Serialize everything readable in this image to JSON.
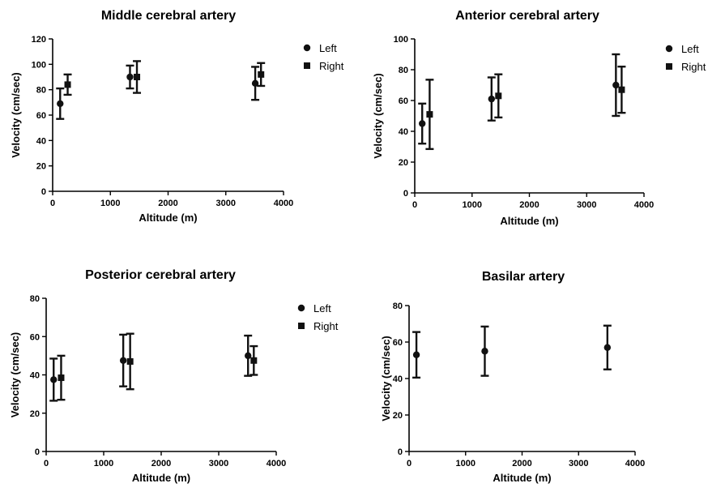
{
  "chart_data": [
    {
      "type": "scatter",
      "title": "Middle cerebral artery",
      "xlabel": "Altitude (m)",
      "ylabel": "Velocity (cm/sec)",
      "xlim": [
        0,
        4000
      ],
      "ylim": [
        0,
        120
      ],
      "xticks": [
        0,
        1000,
        2000,
        3000,
        4000
      ],
      "yticks": [
        0,
        20,
        40,
        60,
        80,
        100,
        120
      ],
      "grid": false,
      "legend": "right",
      "series": [
        {
          "name": "Left",
          "marker": "circle",
          "points": [
            {
              "x": 130,
              "y": 69,
              "err": 12
            },
            {
              "x": 1340,
              "y": 90,
              "err": 9
            },
            {
              "x": 3510,
              "y": 85,
              "err": 13
            }
          ]
        },
        {
          "name": "Right",
          "marker": "square",
          "points": [
            {
              "x": 260,
              "y": 84,
              "err": 8
            },
            {
              "x": 1460,
              "y": 90,
              "err": 12.5
            },
            {
              "x": 3610,
              "y": 92,
              "err": 9
            }
          ]
        }
      ]
    },
    {
      "type": "scatter",
      "title": "Anterior cerebral artery",
      "xlabel": "Altitude (m)",
      "ylabel": "Velocity (cm/sec)",
      "xlim": [
        0,
        4000
      ],
      "ylim": [
        0,
        100
      ],
      "xticks": [
        0,
        1000,
        2000,
        3000,
        4000
      ],
      "yticks": [
        0,
        20,
        40,
        60,
        80,
        100
      ],
      "grid": false,
      "legend": "right",
      "series": [
        {
          "name": "Left",
          "marker": "circle",
          "points": [
            {
              "x": 130,
              "y": 45,
              "err": 13
            },
            {
              "x": 1340,
              "y": 61,
              "err": 14
            },
            {
              "x": 3510,
              "y": 70,
              "err": 20
            }
          ]
        },
        {
          "name": "Right",
          "marker": "square",
          "points": [
            {
              "x": 260,
              "y": 51,
              "err": 22.5
            },
            {
              "x": 1460,
              "y": 63,
              "err": 14
            },
            {
              "x": 3610,
              "y": 67,
              "err": 15
            }
          ]
        }
      ]
    },
    {
      "type": "scatter",
      "title": "Posterior cerebral artery",
      "xlabel": "Altitude (m)",
      "ylabel": "Velocity (cm/sec)",
      "xlim": [
        0,
        4000
      ],
      "ylim": [
        0,
        80
      ],
      "xticks": [
        0,
        1000,
        2000,
        3000,
        4000
      ],
      "yticks": [
        0,
        20,
        40,
        60,
        80
      ],
      "grid": false,
      "legend": "right",
      "series": [
        {
          "name": "Left",
          "marker": "circle",
          "points": [
            {
              "x": 130,
              "y": 37.5,
              "err": 11
            },
            {
              "x": 1340,
              "y": 47.5,
              "err": 13.5
            },
            {
              "x": 3510,
              "y": 50,
              "err": 10.5
            }
          ]
        },
        {
          "name": "Right",
          "marker": "square",
          "points": [
            {
              "x": 260,
              "y": 38.5,
              "err": 11.5
            },
            {
              "x": 1460,
              "y": 47,
              "err": 14.5
            },
            {
              "x": 3610,
              "y": 47.5,
              "err": 7.5
            }
          ]
        }
      ]
    },
    {
      "type": "scatter",
      "title": "Basilar artery",
      "xlabel": "Altitude (m)",
      "ylabel": "Velocity (cm/sec)",
      "xlim": [
        0,
        4000
      ],
      "ylim": [
        0,
        80
      ],
      "xticks": [
        0,
        1000,
        2000,
        3000,
        4000
      ],
      "yticks": [
        0,
        20,
        40,
        60,
        80
      ],
      "grid": false,
      "legend": "none",
      "series": [
        {
          "marker": "circle",
          "points": [
            {
              "x": 130,
              "y": 53,
              "err": 12.5
            },
            {
              "x": 1340,
              "y": 55,
              "err": 13.5
            },
            {
              "x": 3510,
              "y": 57,
              "err": 12
            }
          ]
        }
      ]
    }
  ]
}
